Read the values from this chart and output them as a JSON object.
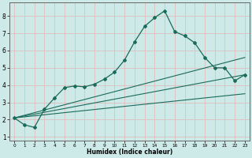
{
  "xlabel": "Humidex (Indice chaleur)",
  "bg_color": "#ceeae8",
  "grid_color": "#ddbdbd",
  "line_color": "#1a6b5a",
  "marker_color": "#1a6b5a",
  "xlim": [
    -0.5,
    23.5
  ],
  "ylim": [
    0.8,
    8.8
  ],
  "xticks": [
    0,
    1,
    2,
    3,
    4,
    5,
    6,
    7,
    8,
    9,
    10,
    11,
    12,
    13,
    14,
    15,
    16,
    17,
    18,
    19,
    20,
    21,
    22,
    23
  ],
  "yticks": [
    1,
    2,
    3,
    4,
    5,
    6,
    7,
    8
  ],
  "line1_x": [
    0,
    1,
    2,
    3,
    4,
    5,
    6,
    7,
    8,
    9,
    10,
    11,
    12,
    13,
    14,
    15,
    16,
    17,
    18,
    19,
    20,
    21,
    22,
    23
  ],
  "line1_y": [
    2.1,
    1.7,
    1.55,
    2.6,
    3.25,
    3.85,
    3.95,
    3.9,
    4.05,
    4.35,
    4.75,
    5.45,
    6.5,
    7.4,
    7.9,
    8.3,
    7.1,
    6.85,
    6.45,
    5.6,
    5.0,
    5.0,
    4.25,
    4.6
  ],
  "line2_x": [
    0,
    23
  ],
  "line2_y": [
    2.1,
    4.6
  ],
  "line3_x": [
    0,
    23
  ],
  "line3_y": [
    2.1,
    5.6
  ],
  "line4_x": [
    0,
    23
  ],
  "line4_y": [
    2.1,
    3.5
  ]
}
